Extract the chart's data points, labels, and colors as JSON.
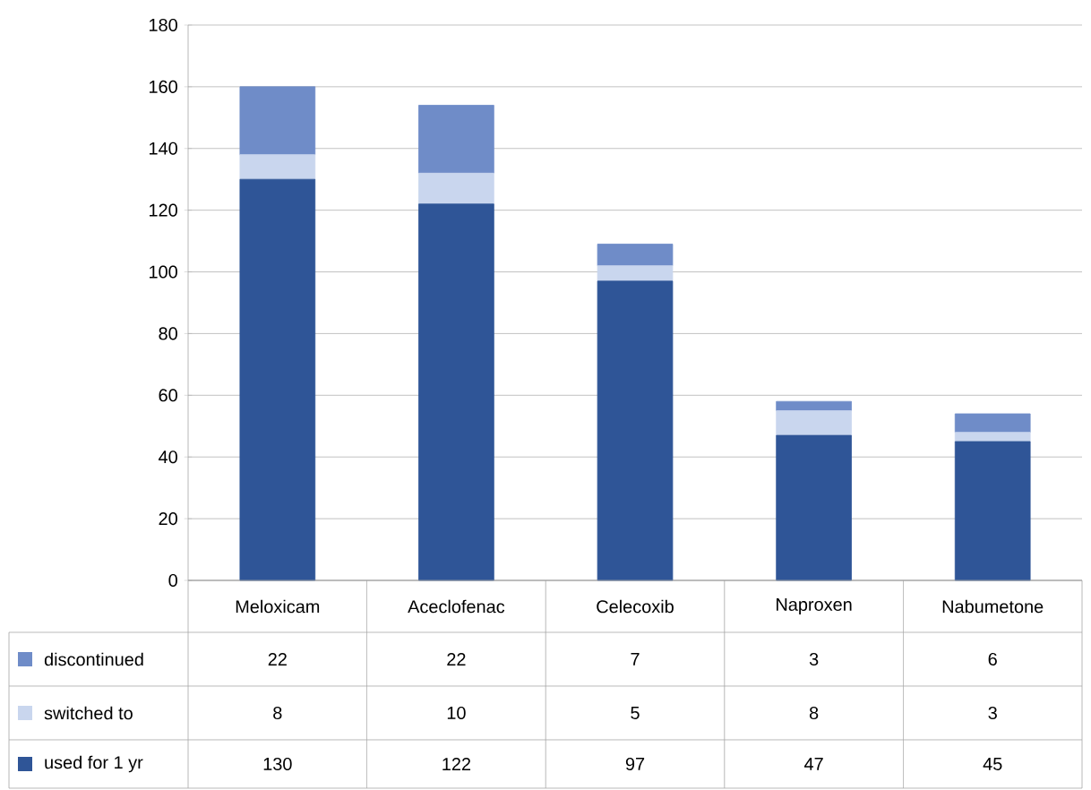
{
  "chart_data": {
    "type": "bar",
    "stacked": true,
    "categories": [
      "Meloxicam",
      "Aceclofenac",
      "Celecoxib",
      "Naproxen",
      "Nabumetone"
    ],
    "series": [
      {
        "name": "used for 1 yr",
        "color": "#2f5597",
        "values": [
          130,
          122,
          97,
          47,
          45
        ]
      },
      {
        "name": "switched to",
        "color": "#c9d6ee",
        "values": [
          8,
          10,
          5,
          8,
          3
        ]
      },
      {
        "name": "discontinued",
        "color": "#6f8cc8",
        "values": [
          22,
          22,
          7,
          3,
          6
        ]
      }
    ],
    "ylim": [
      0,
      180
    ],
    "yticks": [
      0,
      20,
      40,
      60,
      80,
      100,
      120,
      140,
      160,
      180
    ],
    "grid": "y",
    "legend": "bottom left",
    "data_labels": true
  }
}
